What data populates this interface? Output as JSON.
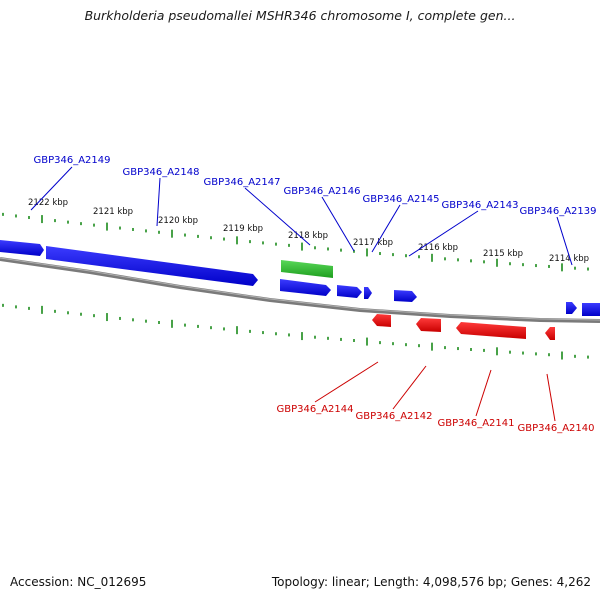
{
  "title": "Burkholderia pseudomallei MSHR346 chromosome I, complete gen...",
  "footer": {
    "accession": "Accession: NC_012695",
    "summary": "Topology: linear; Length: 4,098,576 bp; Genes: 4,262"
  },
  "colors": {
    "forward_gene": "#0000ee",
    "reverse_gene": "#ee0000",
    "highlight_gene": "#22bb22",
    "tick": "#1a8a1a",
    "backbone": "#8a8a8a",
    "forward_label": "#0000cc",
    "reverse_label": "#cc0000"
  },
  "scale_labels": [
    "2122 kbp",
    "2121 kbp",
    "2120 kbp",
    "2119 kbp",
    "2118 kbp",
    "2117 kbp",
    "2116 kbp",
    "2115 kbp",
    "2114 kbp"
  ],
  "forward_labels": [
    "GBP346_A2149",
    "GBP346_A2148",
    "GBP346_A2147",
    "GBP346_A2146",
    "GBP346_A2145",
    "GBP346_A2143",
    "GBP346_A2139"
  ],
  "reverse_labels": [
    "GBP346_A2144",
    "GBP346_A2142",
    "GBP346_A2141",
    "GBP346_A2140"
  ]
}
